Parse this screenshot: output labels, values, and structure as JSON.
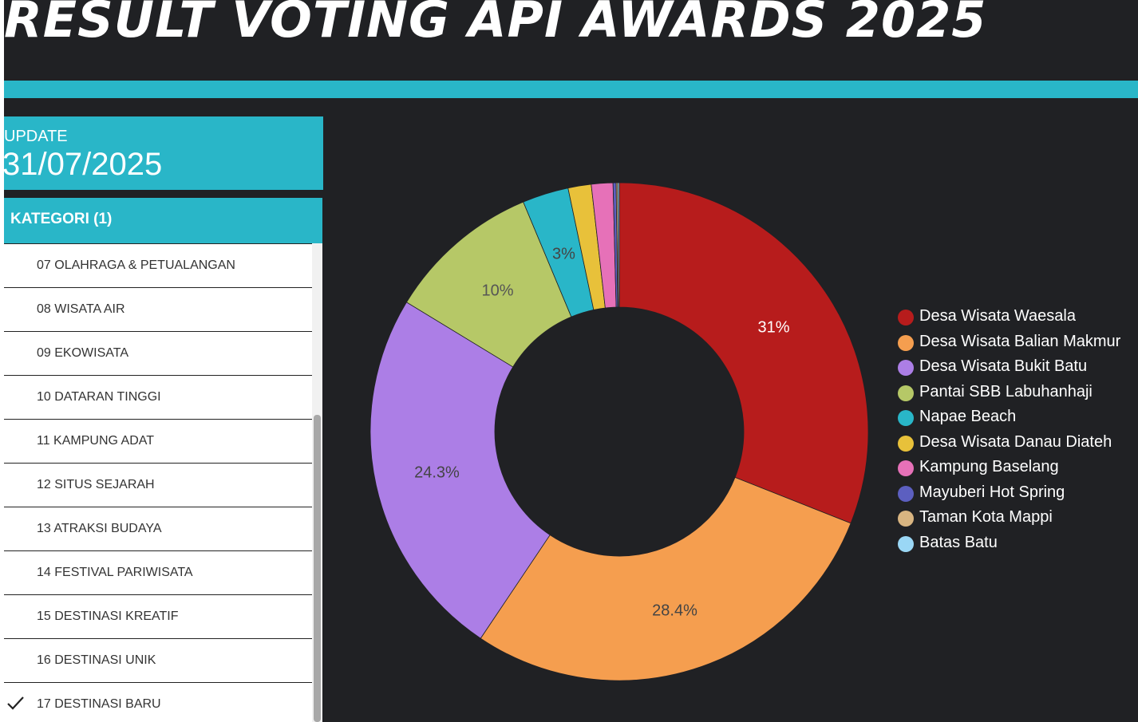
{
  "header": {
    "title": "RESULT VOTING API AWARDS 2025"
  },
  "update": {
    "label": "UPDATE",
    "date": "31/07/2025"
  },
  "category": {
    "header": "KATEGORI (1)",
    "items": [
      {
        "label": "07 OLAHRAGA & PETUALANGAN",
        "selected": false
      },
      {
        "label": "08 WISATA AIR",
        "selected": false
      },
      {
        "label": "09 EKOWISATA",
        "selected": false
      },
      {
        "label": "10 DATARAN TINGGI",
        "selected": false
      },
      {
        "label": "11 KAMPUNG ADAT",
        "selected": false
      },
      {
        "label": "12 SITUS SEJARAH",
        "selected": false
      },
      {
        "label": "13 ATRAKSI BUDAYA",
        "selected": false
      },
      {
        "label": "14 FESTIVAL PARIWISATA",
        "selected": false
      },
      {
        "label": "15 DESTINASI KREATIF",
        "selected": false
      },
      {
        "label": "16 DESTINASI UNIK",
        "selected": false
      },
      {
        "label": "17 DESTINASI BARU",
        "selected": true
      }
    ]
  },
  "icons": {
    "selected": "checkmark-icon"
  },
  "chart_data": {
    "type": "pie",
    "hole": 0.5,
    "start": "top",
    "direction": "clockwise",
    "legend_position": "right",
    "series": [
      {
        "name": "Desa Wisata Waesala",
        "value": 31.0,
        "label": "31%",
        "color": "#b71c1c",
        "label_color": "#ffffff"
      },
      {
        "name": "Desa Wisata Balian Makmur",
        "value": 28.4,
        "label": "28.4%",
        "color": "#f59e4f",
        "label_color": "#444444"
      },
      {
        "name": "Desa Wisata Bukit Batu",
        "value": 24.3,
        "label": "24.3%",
        "color": "#ac7ee6",
        "label_color": "#444444"
      },
      {
        "name": "Pantai SBB Labuhanhaji",
        "value": 10.0,
        "label": "10%",
        "color": "#b6c867",
        "label_color": "#555555"
      },
      {
        "name": "Napae Beach",
        "value": 3.0,
        "label": "3%",
        "color": "#29b6c8",
        "label_color": "#444444"
      },
      {
        "name": "Desa Wisata Danau Diateh",
        "value": 1.5,
        "label": "",
        "color": "#e8c13a",
        "label_color": "#444444"
      },
      {
        "name": "Kampung Baselang",
        "value": 1.4,
        "label": "",
        "color": "#e671b8",
        "label_color": "#444444"
      },
      {
        "name": "Mayuberi Hot Spring",
        "value": 0.2,
        "label": "",
        "color": "#5c5fc0",
        "label_color": "#444444"
      },
      {
        "name": "Taman Kota Mappi",
        "value": 0.1,
        "label": "",
        "color": "#d9b581",
        "label_color": "#444444"
      },
      {
        "name": "Batas Batu",
        "value": 0.1,
        "label": "",
        "color": "#9ad7f5",
        "label_color": "#444444"
      }
    ]
  }
}
